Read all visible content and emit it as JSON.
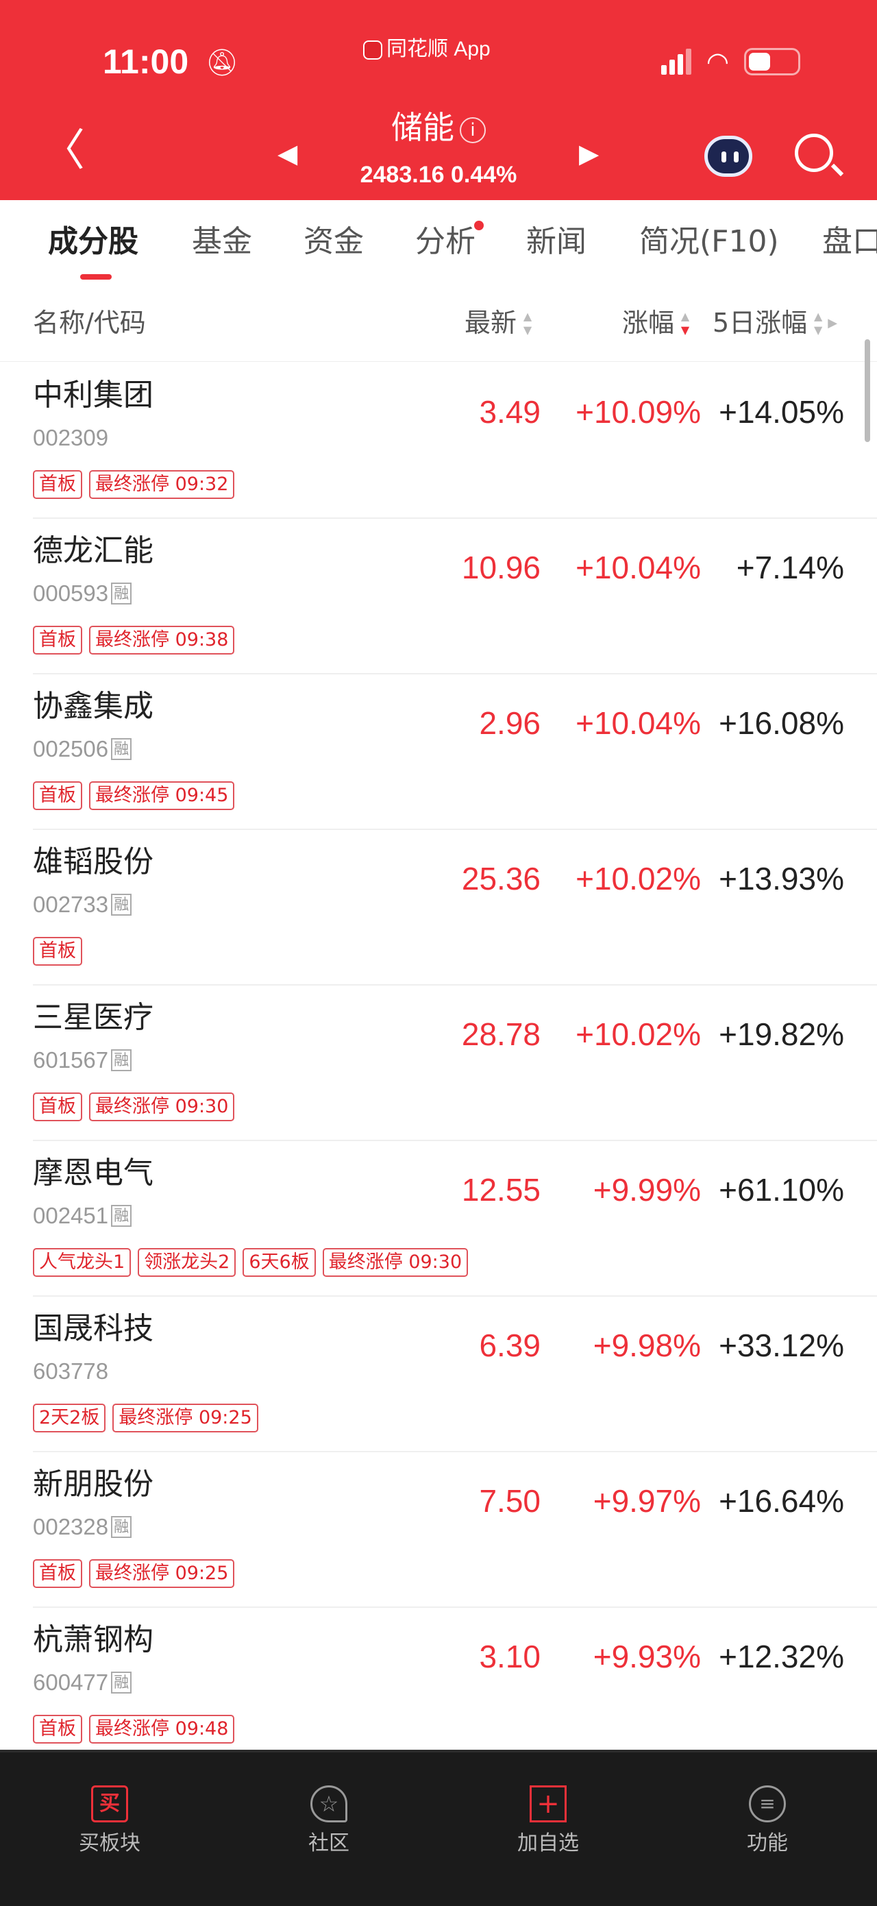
{
  "status_bar": {
    "time": "11:00",
    "app": "同花顺 App"
  },
  "header": {
    "title": "储能",
    "info_icon": "i",
    "index_value": "2483.16",
    "index_change": "0.44%"
  },
  "tabs": [
    {
      "label": "成分股",
      "active": true
    },
    {
      "label": "基金"
    },
    {
      "label": "资金"
    },
    {
      "label": "分析",
      "dot": true
    },
    {
      "label": "新闻"
    },
    {
      "label": "简况(F10)"
    },
    {
      "label": "盘口"
    }
  ],
  "columns": {
    "name": "名称/代码",
    "price": "最新",
    "change": "涨幅",
    "change5": "5日涨幅",
    "sorted": "涨幅 descending"
  },
  "rong_label": "融",
  "rows": [
    {
      "name": "中利集团",
      "code": "002309",
      "rong": false,
      "price": "3.49",
      "change": "+10.09%",
      "change5": "+14.05%",
      "tags": [
        "首板",
        "最终涨停 09:32"
      ]
    },
    {
      "name": "德龙汇能",
      "code": "000593",
      "rong": true,
      "price": "10.96",
      "change": "+10.04%",
      "change5": "+7.14%",
      "tags": [
        "首板",
        "最终涨停 09:38"
      ]
    },
    {
      "name": "协鑫集成",
      "code": "002506",
      "rong": true,
      "price": "2.96",
      "change": "+10.04%",
      "change5": "+16.08%",
      "tags": [
        "首板",
        "最终涨停 09:45"
      ]
    },
    {
      "name": "雄韬股份",
      "code": "002733",
      "rong": true,
      "price": "25.36",
      "change": "+10.02%",
      "change5": "+13.93%",
      "tags": [
        "首板"
      ]
    },
    {
      "name": "三星医疗",
      "code": "601567",
      "rong": true,
      "price": "28.78",
      "change": "+10.02%",
      "change5": "+19.82%",
      "tags": [
        "首板",
        "最终涨停 09:30"
      ]
    },
    {
      "name": "摩恩电气",
      "code": "002451",
      "rong": true,
      "price": "12.55",
      "change": "+9.99%",
      "change5": "+61.10%",
      "tags": [
        "人气龙头1",
        "领涨龙头2",
        "6天6板",
        "最终涨停 09:30"
      ]
    },
    {
      "name": "国晟科技",
      "code": "603778",
      "rong": false,
      "price": "6.39",
      "change": "+9.98%",
      "change5": "+33.12%",
      "tags": [
        "2天2板",
        "最终涨停 09:25"
      ]
    },
    {
      "name": "新朋股份",
      "code": "002328",
      "rong": true,
      "price": "7.50",
      "change": "+9.97%",
      "change5": "+16.64%",
      "tags": [
        "首板",
        "最终涨停 09:25"
      ]
    },
    {
      "name": "杭萧钢构",
      "code": "600477",
      "rong": true,
      "price": "3.10",
      "change": "+9.93%",
      "change5": "+12.32%",
      "tags": [
        "首板",
        "最终涨停 09:48"
      ]
    }
  ],
  "bottom_nav": [
    {
      "label": "买板块",
      "icon": "buy-icon",
      "glyph": "买"
    },
    {
      "label": "社区",
      "icon": "community-star-icon"
    },
    {
      "label": "加自选",
      "icon": "add-watchlist-icon"
    },
    {
      "label": "功能",
      "icon": "menu-icon"
    }
  ],
  "colors": {
    "accent": "#ee3039",
    "up": "#ee3039",
    "bottom_bg": "#1b1b1b"
  }
}
